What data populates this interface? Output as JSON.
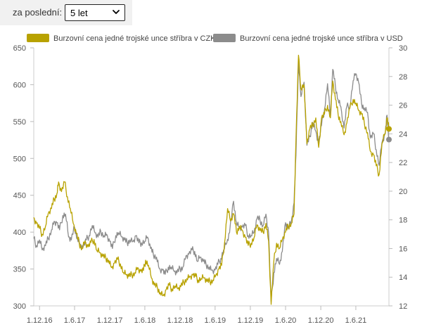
{
  "controls": {
    "period_label": "za poslední:",
    "period_value": "5 let",
    "period_icon": "chevron-down-icon"
  },
  "chart_data": {
    "type": "line",
    "x_type": "date",
    "x_ticks": [
      "1.12.16",
      "1.6.17",
      "1.12.17",
      "1.6.18",
      "1.12.18",
      "1.6.19",
      "1.12.19",
      "1.6.20",
      "1.12.20",
      "1.6.21"
    ],
    "x_range": [
      "2016-11-01",
      "2021-11-20"
    ],
    "y_left": {
      "ticks": [
        300,
        350,
        400,
        450,
        500,
        550,
        600,
        650
      ],
      "range": [
        300,
        650
      ]
    },
    "y_right": {
      "ticks": [
        12,
        14,
        16,
        18,
        20,
        22,
        24,
        26,
        28,
        30
      ],
      "range": [
        12,
        30
      ]
    },
    "grid": false,
    "legend_position": "top",
    "series": [
      {
        "name": "Burzovní cena jedné trojské unce stříbra v CZK",
        "axis": "left",
        "color": "#b8a200",
        "points": [
          [
            "2016-11-01",
            420
          ],
          [
            "2016-11-15",
            412
          ],
          [
            "2016-12-01",
            405
          ],
          [
            "2016-12-15",
            397
          ],
          [
            "2017-01-01",
            408
          ],
          [
            "2017-01-15",
            425
          ],
          [
            "2017-02-01",
            432
          ],
          [
            "2017-02-15",
            445
          ],
          [
            "2017-03-01",
            452
          ],
          [
            "2017-03-10",
            468
          ],
          [
            "2017-03-25",
            455
          ],
          [
            "2017-04-10",
            468
          ],
          [
            "2017-04-25",
            448
          ],
          [
            "2017-05-10",
            432
          ],
          [
            "2017-05-25",
            412
          ],
          [
            "2017-06-10",
            398
          ],
          [
            "2017-06-25",
            385
          ],
          [
            "2017-07-10",
            378
          ],
          [
            "2017-07-25",
            388
          ],
          [
            "2017-08-10",
            380
          ],
          [
            "2017-08-25",
            386
          ],
          [
            "2017-09-10",
            390
          ],
          [
            "2017-09-25",
            375
          ],
          [
            "2017-10-10",
            372
          ],
          [
            "2017-10-25",
            367
          ],
          [
            "2017-11-10",
            365
          ],
          [
            "2017-11-25",
            362
          ],
          [
            "2017-12-10",
            352
          ],
          [
            "2017-12-25",
            358
          ],
          [
            "2018-01-10",
            363
          ],
          [
            "2018-01-25",
            357
          ],
          [
            "2018-02-10",
            345
          ],
          [
            "2018-02-25",
            342
          ],
          [
            "2018-03-10",
            340
          ],
          [
            "2018-03-25",
            342
          ],
          [
            "2018-04-10",
            345
          ],
          [
            "2018-04-25",
            352
          ],
          [
            "2018-05-10",
            347
          ],
          [
            "2018-05-25",
            348
          ],
          [
            "2018-06-05",
            362
          ],
          [
            "2018-06-20",
            355
          ],
          [
            "2018-07-05",
            338
          ],
          [
            "2018-07-20",
            328
          ],
          [
            "2018-08-05",
            325
          ],
          [
            "2018-08-20",
            318
          ],
          [
            "2018-09-05",
            314
          ],
          [
            "2018-09-20",
            322
          ],
          [
            "2018-10-05",
            328
          ],
          [
            "2018-10-20",
            323
          ],
          [
            "2018-11-05",
            327
          ],
          [
            "2018-11-20",
            323
          ],
          [
            "2018-12-05",
            326
          ],
          [
            "2018-12-20",
            332
          ],
          [
            "2019-01-05",
            337
          ],
          [
            "2019-01-20",
            340
          ],
          [
            "2019-02-05",
            342
          ],
          [
            "2019-02-20",
            340
          ],
          [
            "2019-03-05",
            335
          ],
          [
            "2019-03-20",
            337
          ],
          [
            "2019-04-05",
            338
          ],
          [
            "2019-04-20",
            333
          ],
          [
            "2019-05-05",
            333
          ],
          [
            "2019-05-20",
            335
          ],
          [
            "2019-06-05",
            342
          ],
          [
            "2019-06-20",
            350
          ],
          [
            "2019-07-05",
            355
          ],
          [
            "2019-07-20",
            385
          ],
          [
            "2019-08-05",
            432
          ],
          [
            "2019-08-20",
            415
          ],
          [
            "2019-09-05",
            425
          ],
          [
            "2019-09-20",
            400
          ],
          [
            "2019-10-05",
            408
          ],
          [
            "2019-10-20",
            403
          ],
          [
            "2019-11-05",
            393
          ],
          [
            "2019-11-20",
            382
          ],
          [
            "2019-12-05",
            385
          ],
          [
            "2019-12-20",
            392
          ],
          [
            "2020-01-05",
            410
          ],
          [
            "2020-01-20",
            402
          ],
          [
            "2020-02-05",
            400
          ],
          [
            "2020-02-20",
            412
          ],
          [
            "2020-03-05",
            388
          ],
          [
            "2020-03-18",
            302
          ],
          [
            "2020-04-01",
            360
          ],
          [
            "2020-04-15",
            385
          ],
          [
            "2020-05-01",
            378
          ],
          [
            "2020-05-15",
            390
          ],
          [
            "2020-06-01",
            400
          ],
          [
            "2020-06-15",
            408
          ],
          [
            "2020-07-01",
            412
          ],
          [
            "2020-07-15",
            425
          ],
          [
            "2020-07-25",
            525
          ],
          [
            "2020-08-07",
            640
          ],
          [
            "2020-08-20",
            595
          ],
          [
            "2020-09-05",
            600
          ],
          [
            "2020-09-20",
            520
          ],
          [
            "2020-10-05",
            540
          ],
          [
            "2020-10-20",
            545
          ],
          [
            "2020-11-05",
            555
          ],
          [
            "2020-11-20",
            515
          ],
          [
            "2020-12-05",
            555
          ],
          [
            "2020-12-20",
            560
          ],
          [
            "2021-01-05",
            572
          ],
          [
            "2021-01-20",
            555
          ],
          [
            "2021-02-01",
            605
          ],
          [
            "2021-02-15",
            580
          ],
          [
            "2021-03-01",
            560
          ],
          [
            "2021-03-15",
            550
          ],
          [
            "2021-04-01",
            532
          ],
          [
            "2021-04-15",
            548
          ],
          [
            "2021-05-01",
            568
          ],
          [
            "2021-05-18",
            580
          ],
          [
            "2021-06-01",
            575
          ],
          [
            "2021-06-15",
            565
          ],
          [
            "2021-07-01",
            560
          ],
          [
            "2021-07-15",
            548
          ],
          [
            "2021-08-01",
            535
          ],
          [
            "2021-08-15",
            510
          ],
          [
            "2021-09-01",
            505
          ],
          [
            "2021-09-15",
            490
          ],
          [
            "2021-09-30",
            478
          ],
          [
            "2021-10-15",
            520
          ],
          [
            "2021-11-01",
            535
          ],
          [
            "2021-11-10",
            555
          ],
          [
            "2021-11-20",
            540
          ]
        ]
      },
      {
        "name": "Burzovní cena jedné trojské unce stříbra v USD",
        "axis": "right",
        "color": "#8c8c8c",
        "points": [
          [
            "2016-11-01",
            16.7
          ],
          [
            "2016-11-15",
            16.2
          ],
          [
            "2016-12-01",
            16.6
          ],
          [
            "2016-12-15",
            15.9
          ],
          [
            "2017-01-01",
            16.2
          ],
          [
            "2017-01-15",
            16.7
          ],
          [
            "2017-02-01",
            17.3
          ],
          [
            "2017-02-15",
            17.9
          ],
          [
            "2017-03-01",
            17.8
          ],
          [
            "2017-03-15",
            17.3
          ],
          [
            "2017-04-01",
            18.3
          ],
          [
            "2017-04-15",
            18.4
          ],
          [
            "2017-05-01",
            16.8
          ],
          [
            "2017-05-15",
            16.6
          ],
          [
            "2017-06-01",
            17.5
          ],
          [
            "2017-06-15",
            16.7
          ],
          [
            "2017-07-01",
            16.3
          ],
          [
            "2017-07-15",
            16.1
          ],
          [
            "2017-08-01",
            16.6
          ],
          [
            "2017-08-15",
            16.9
          ],
          [
            "2017-09-01",
            17.6
          ],
          [
            "2017-09-15",
            17.1
          ],
          [
            "2017-10-01",
            16.8
          ],
          [
            "2017-10-15",
            17.2
          ],
          [
            "2017-11-01",
            16.9
          ],
          [
            "2017-11-15",
            17.0
          ],
          [
            "2017-12-01",
            16.5
          ],
          [
            "2017-12-15",
            16.0
          ],
          [
            "2018-01-01",
            16.9
          ],
          [
            "2018-01-15",
            17.1
          ],
          [
            "2018-02-01",
            16.8
          ],
          [
            "2018-02-15",
            16.6
          ],
          [
            "2018-03-01",
            16.4
          ],
          [
            "2018-03-15",
            16.6
          ],
          [
            "2018-04-01",
            16.5
          ],
          [
            "2018-04-15",
            16.9
          ],
          [
            "2018-05-01",
            16.4
          ],
          [
            "2018-05-15",
            16.4
          ],
          [
            "2018-06-01",
            16.5
          ],
          [
            "2018-06-15",
            16.8
          ],
          [
            "2018-07-01",
            16.0
          ],
          [
            "2018-07-15",
            15.6
          ],
          [
            "2018-08-01",
            15.4
          ],
          [
            "2018-08-15",
            14.6
          ],
          [
            "2018-09-01",
            14.5
          ],
          [
            "2018-09-15",
            14.2
          ],
          [
            "2018-10-01",
            14.7
          ],
          [
            "2018-10-15",
            14.7
          ],
          [
            "2018-11-01",
            14.4
          ],
          [
            "2018-11-15",
            14.3
          ],
          [
            "2018-12-01",
            14.6
          ],
          [
            "2018-12-15",
            14.7
          ],
          [
            "2019-01-01",
            15.5
          ],
          [
            "2019-01-15",
            15.6
          ],
          [
            "2019-02-01",
            15.9
          ],
          [
            "2019-02-15",
            15.8
          ],
          [
            "2019-03-01",
            15.1
          ],
          [
            "2019-03-15",
            15.4
          ],
          [
            "2019-04-01",
            15.1
          ],
          [
            "2019-04-15",
            14.9
          ],
          [
            "2019-05-01",
            14.7
          ],
          [
            "2019-05-15",
            14.5
          ],
          [
            "2019-06-01",
            14.5
          ],
          [
            "2019-06-15",
            14.9
          ],
          [
            "2019-07-01",
            15.3
          ],
          [
            "2019-07-15",
            15.9
          ],
          [
            "2019-08-01",
            16.4
          ],
          [
            "2019-08-15",
            17.1
          ],
          [
            "2019-09-05",
            19.3
          ],
          [
            "2019-09-20",
            17.8
          ],
          [
            "2019-10-05",
            17.5
          ],
          [
            "2019-10-20",
            17.5
          ],
          [
            "2019-11-05",
            17.6
          ],
          [
            "2019-11-20",
            16.9
          ],
          [
            "2019-12-05",
            16.9
          ],
          [
            "2019-12-20",
            17.1
          ],
          [
            "2020-01-05",
            18.1
          ],
          [
            "2020-01-20",
            18.0
          ],
          [
            "2020-02-05",
            17.6
          ],
          [
            "2020-02-20",
            18.4
          ],
          [
            "2020-03-05",
            17.1
          ],
          [
            "2020-03-18",
            12.3
          ],
          [
            "2020-04-01",
            14.3
          ],
          [
            "2020-04-15",
            15.3
          ],
          [
            "2020-05-01",
            14.9
          ],
          [
            "2020-05-15",
            15.8
          ],
          [
            "2020-06-01",
            17.8
          ],
          [
            "2020-06-15",
            17.5
          ],
          [
            "2020-07-01",
            17.9
          ],
          [
            "2020-07-15",
            19.2
          ],
          [
            "2020-07-25",
            22.5
          ],
          [
            "2020-08-07",
            29.1
          ],
          [
            "2020-08-20",
            26.6
          ],
          [
            "2020-09-05",
            27.6
          ],
          [
            "2020-09-20",
            23.2
          ],
          [
            "2020-10-05",
            23.8
          ],
          [
            "2020-10-20",
            24.8
          ],
          [
            "2020-11-05",
            24.2
          ],
          [
            "2020-11-20",
            23.4
          ],
          [
            "2020-12-05",
            24.6
          ],
          [
            "2020-12-20",
            25.7
          ],
          [
            "2021-01-05",
            27.5
          ],
          [
            "2021-01-20",
            25.2
          ],
          [
            "2021-02-01",
            28.5
          ],
          [
            "2021-02-15",
            27.3
          ],
          [
            "2021-03-01",
            26.4
          ],
          [
            "2021-03-15",
            25.9
          ],
          [
            "2021-04-01",
            24.4
          ],
          [
            "2021-04-15",
            25.9
          ],
          [
            "2021-05-01",
            25.9
          ],
          [
            "2021-05-18",
            27.7
          ],
          [
            "2021-06-01",
            28.2
          ],
          [
            "2021-06-15",
            27.6
          ],
          [
            "2021-07-01",
            26.1
          ],
          [
            "2021-07-15",
            25.8
          ],
          [
            "2021-08-01",
            25.5
          ],
          [
            "2021-08-15",
            23.7
          ],
          [
            "2021-09-01",
            24.0
          ],
          [
            "2021-09-15",
            22.9
          ],
          [
            "2021-09-30",
            21.8
          ],
          [
            "2021-10-15",
            23.4
          ],
          [
            "2021-11-01",
            24.0
          ],
          [
            "2021-11-10",
            25.3
          ],
          [
            "2021-11-20",
            23.6
          ]
        ]
      }
    ]
  }
}
